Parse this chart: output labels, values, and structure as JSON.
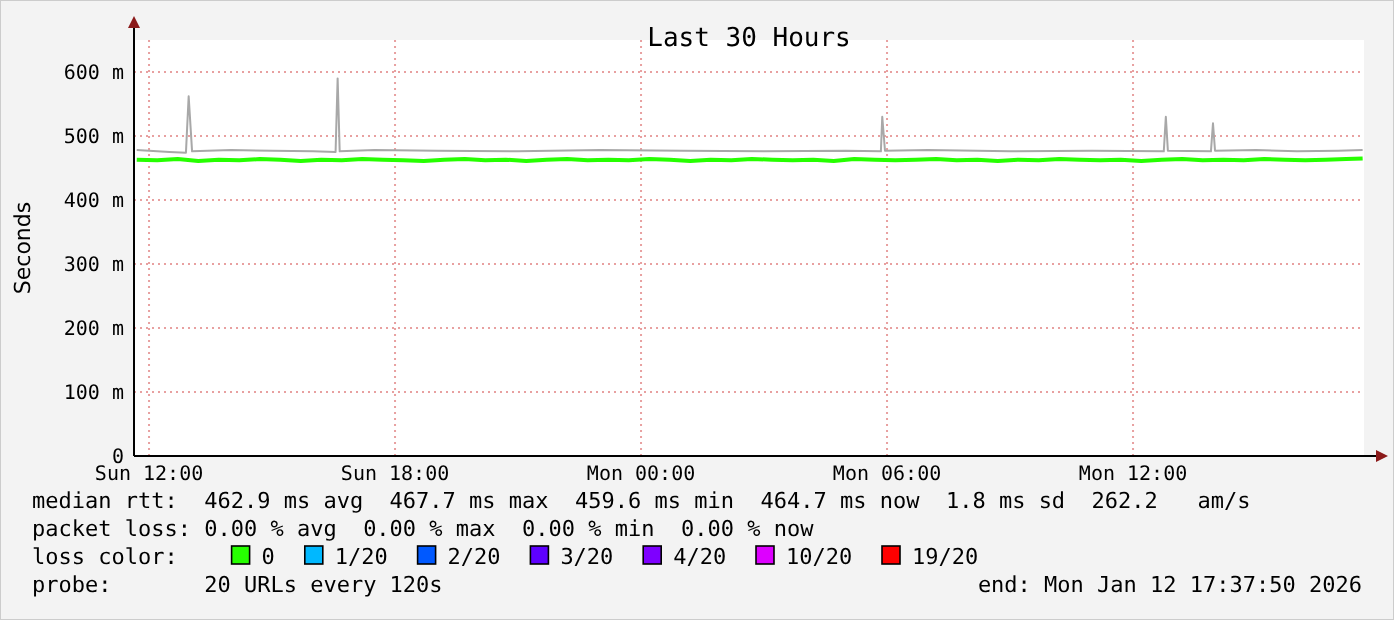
{
  "chart_data": {
    "type": "line",
    "title": "Last 30 Hours",
    "ylabel": "Seconds",
    "xlim": [
      "2026-01-11T11:38",
      "2026-01-12T17:38"
    ],
    "xticks": [
      {
        "value": "2026-01-11T12:00",
        "label": "Sun 12:00"
      },
      {
        "value": "2026-01-11T18:00",
        "label": "Sun 18:00"
      },
      {
        "value": "2026-01-12T00:00",
        "label": "Mon 00:00"
      },
      {
        "value": "2026-01-12T06:00",
        "label": "Mon 06:00"
      },
      {
        "value": "2026-01-12T12:00",
        "label": "Mon 12:00"
      }
    ],
    "ylim": [
      0,
      650
    ],
    "yticks": [
      0,
      {
        "value": 100,
        "label": "100 m"
      },
      {
        "value": 200,
        "label": "200 m"
      },
      {
        "value": 300,
        "label": "300 m"
      },
      {
        "value": 400,
        "label": "400 m"
      },
      {
        "value": 500,
        "label": "500 m"
      },
      {
        "value": 600,
        "label": "600 m"
      }
    ],
    "grid": true,
    "legend": "bottom",
    "legend_title": "loss color:",
    "series": [
      {
        "color": "#a8a8a8",
        "x": [
          "2026-01-11T11:42",
          "2026-01-11T12:30",
          "2026-01-11T12:54",
          "2026-01-11T12:58",
          "2026-01-11T13:03",
          "2026-01-11T14:00",
          "2026-01-11T15:00",
          "2026-01-11T16:00",
          "2026-01-11T16:33",
          "2026-01-11T16:36",
          "2026-01-11T16:39",
          "2026-01-11T17:30",
          "2026-01-11T19:00",
          "2026-01-11T21:00",
          "2026-01-11T23:00",
          "2026-01-12T01:00",
          "2026-01-12T03:00",
          "2026-01-12T05:00",
          "2026-01-12T05:51",
          "2026-01-12T05:53",
          "2026-01-12T05:57",
          "2026-01-12T07:00",
          "2026-01-12T09:00",
          "2026-01-12T11:00",
          "2026-01-12T12:45",
          "2026-01-12T12:48",
          "2026-01-12T12:51",
          "2026-01-12T13:54",
          "2026-01-12T13:57",
          "2026-01-12T14:00",
          "2026-01-12T15:00",
          "2026-01-12T16:00",
          "2026-01-12T17:00",
          "2026-01-12T17:36"
        ],
        "values": [
          478,
          475,
          474,
          562,
          476,
          478,
          477,
          476,
          475,
          590,
          476,
          478,
          477,
          476,
          478,
          477,
          476,
          477,
          476,
          530,
          477,
          478,
          476,
          477,
          476,
          530,
          477,
          476,
          520,
          477,
          478,
          476,
          477,
          478
        ]
      },
      {
        "name": "0",
        "color": "#26ff00",
        "x": [
          "2026-01-11T11:42",
          "2026-01-11T12:12",
          "2026-01-11T12:42",
          "2026-01-11T13:12",
          "2026-01-11T13:42",
          "2026-01-11T14:12",
          "2026-01-11T14:42",
          "2026-01-11T15:12",
          "2026-01-11T15:42",
          "2026-01-11T16:12",
          "2026-01-11T16:42",
          "2026-01-11T17:12",
          "2026-01-11T17:42",
          "2026-01-11T18:12",
          "2026-01-11T18:42",
          "2026-01-11T19:12",
          "2026-01-11T19:42",
          "2026-01-11T20:12",
          "2026-01-11T20:42",
          "2026-01-11T21:12",
          "2026-01-11T21:42",
          "2026-01-11T22:12",
          "2026-01-11T22:42",
          "2026-01-11T23:12",
          "2026-01-11T23:42",
          "2026-01-12T00:12",
          "2026-01-12T00:42",
          "2026-01-12T01:12",
          "2026-01-12T01:42",
          "2026-01-12T02:12",
          "2026-01-12T02:42",
          "2026-01-12T03:12",
          "2026-01-12T03:42",
          "2026-01-12T04:12",
          "2026-01-12T04:42",
          "2026-01-12T05:12",
          "2026-01-12T05:42",
          "2026-01-12T06:12",
          "2026-01-12T06:42",
          "2026-01-12T07:12",
          "2026-01-12T07:42",
          "2026-01-12T08:12",
          "2026-01-12T08:42",
          "2026-01-12T09:12",
          "2026-01-12T09:42",
          "2026-01-12T10:12",
          "2026-01-12T10:42",
          "2026-01-12T11:12",
          "2026-01-12T11:42",
          "2026-01-12T12:12",
          "2026-01-12T12:42",
          "2026-01-12T13:12",
          "2026-01-12T13:42",
          "2026-01-12T14:12",
          "2026-01-12T14:42",
          "2026-01-12T15:12",
          "2026-01-12T15:42",
          "2026-01-12T16:12",
          "2026-01-12T16:42",
          "2026-01-12T17:12",
          "2026-01-12T17:36"
        ],
        "values": [
          463,
          462,
          464,
          461,
          463,
          462,
          464,
          463,
          461,
          463,
          462,
          464,
          463,
          462,
          461,
          463,
          464,
          462,
          463,
          461,
          463,
          464,
          462,
          463,
          462,
          464,
          463,
          461,
          463,
          462,
          464,
          463,
          462,
          463,
          461,
          464,
          463,
          462,
          463,
          464,
          462,
          463,
          461,
          463,
          462,
          464,
          463,
          462,
          463,
          461,
          463,
          464,
          462,
          463,
          462,
          464,
          463,
          462,
          463,
          464,
          465
        ]
      },
      {
        "name": "1/20",
        "color": "#00b8ff"
      },
      {
        "name": "2/20",
        "color": "#0059ff"
      },
      {
        "name": "3/20",
        "color": "#5e00ff"
      },
      {
        "name": "4/20",
        "color": "#7e00ff"
      },
      {
        "name": "10/20",
        "color": "#dd00ff"
      },
      {
        "name": "19/20",
        "color": "#ff0000"
      }
    ],
    "annotations": [
      "median rtt:  462.9 ms avg  467.7 ms max  459.6 ms min  464.7 ms now  1.8 ms sd  262.2   am/s",
      "packet loss: 0.00 % avg  0.00 % max  0.00 % min  0.00 % now",
      "probe:       20 URLs every 120s",
      "end: Mon Jan 12 17:37:50 2026"
    ]
  }
}
